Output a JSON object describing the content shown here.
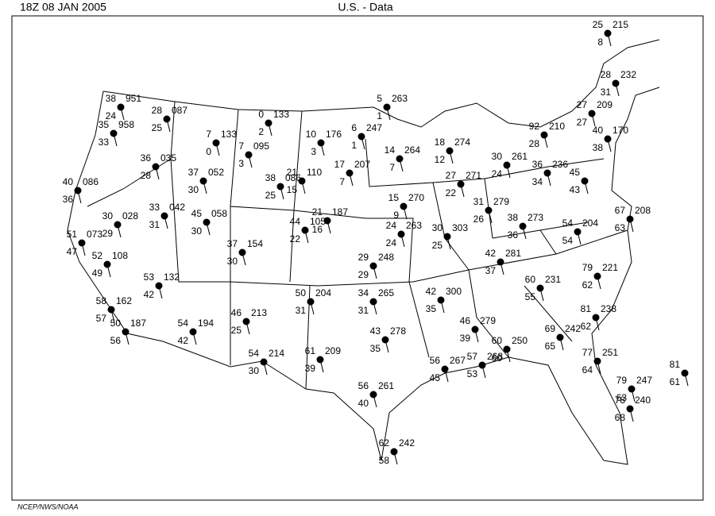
{
  "header": {
    "time": "18Z   08 JAN  2005",
    "title": "U.S. -  Data"
  },
  "footer": "NCEP/NWS/NOAA",
  "stations": [
    {
      "t": "25",
      "p": "215",
      "d": "8"
    },
    {
      "t": "28",
      "p": "232",
      "d": "31"
    },
    {
      "t": "38",
      "p": "951",
      "d": "24"
    },
    {
      "t": "35",
      "p": "958",
      "d": "33"
    },
    {
      "t": "28",
      "p": "087",
      "d": "25"
    },
    {
      "t": "7",
      "p": "133",
      "d": "0"
    },
    {
      "t": "0",
      "p": "133",
      "d": "2"
    },
    {
      "t": "7",
      "p": "095",
      "d": "3"
    },
    {
      "t": "10",
      "p": "176",
      "d": "3"
    },
    {
      "t": "6",
      "p": "247",
      "d": "1"
    },
    {
      "t": "5",
      "p": "263",
      "d": "1"
    },
    {
      "t": "14",
      "p": "264",
      "d": "7"
    },
    {
      "t": "17",
      "p": "207",
      "d": "7"
    },
    {
      "t": "21",
      "p": "110",
      "d": "15"
    },
    {
      "t": "36",
      "p": "035",
      "d": "28"
    },
    {
      "t": "37",
      "p": "052",
      "d": "30"
    },
    {
      "t": "40",
      "p": "086",
      "d": "36"
    },
    {
      "t": "33",
      "p": "042",
      "d": "31"
    },
    {
      "t": "45",
      "p": "058",
      "d": "30"
    },
    {
      "t": "30",
      "p": "028",
      "d": "29"
    },
    {
      "t": "38",
      "p": "086",
      "d": "25"
    },
    {
      "t": "21",
      "p": "187",
      "d": "16"
    },
    {
      "t": "44",
      "p": "105",
      "d": "22"
    },
    {
      "t": "37",
      "p": "154",
      "d": "30"
    },
    {
      "t": "51",
      "p": "073",
      "d": "47"
    },
    {
      "t": "52",
      "p": "108",
      "d": "49"
    },
    {
      "t": "53",
      "p": "132",
      "d": "42"
    },
    {
      "t": "58",
      "p": "162",
      "d": "57"
    },
    {
      "t": "50",
      "p": "187",
      "d": "56"
    },
    {
      "t": "46",
      "p": "213",
      "d": "25"
    },
    {
      "t": "54",
      "p": "194",
      "d": "42"
    },
    {
      "t": "54",
      "p": "214",
      "d": "30"
    },
    {
      "t": "61",
      "p": "209",
      "d": "39"
    },
    {
      "t": "50",
      "p": "204",
      "d": "31"
    },
    {
      "t": "56",
      "p": "261",
      "d": "40"
    },
    {
      "t": "62",
      "p": "242",
      "d": "58"
    },
    {
      "t": "15",
      "p": "270",
      "d": "9"
    },
    {
      "t": "24",
      "p": "263",
      "d": "24"
    },
    {
      "t": "29",
      "p": "248",
      "d": "29"
    },
    {
      "t": "34",
      "p": "265",
      "d": "31"
    },
    {
      "t": "43",
      "p": "278",
      "d": "35"
    },
    {
      "t": "56",
      "p": "267",
      "d": "45"
    },
    {
      "t": "30",
      "p": "303",
      "d": "25"
    },
    {
      "t": "42",
      "p": "300",
      "d": "35"
    },
    {
      "t": "18",
      "p": "274",
      "d": "12"
    },
    {
      "t": "27",
      "p": "271",
      "d": "22"
    },
    {
      "t": "31",
      "p": "279",
      "d": "26"
    },
    {
      "t": "30",
      "p": "261",
      "d": "24"
    },
    {
      "t": "38",
      "p": "273",
      "d": "36"
    },
    {
      "t": "42",
      "p": "281",
      "d": "37"
    },
    {
      "t": "46",
      "p": "279",
      "d": "39"
    },
    {
      "t": "57",
      "p": "268",
      "d": "53"
    },
    {
      "t": "60",
      "p": "250",
      "d": "60"
    },
    {
      "t": "60",
      "p": "231",
      "d": "55"
    },
    {
      "t": "69",
      "p": "242",
      "d": "65"
    },
    {
      "t": "36",
      "p": "236",
      "d": "34"
    },
    {
      "t": "45",
      "d": "43"
    },
    {
      "t": "54",
      "p": "204",
      "d": "54"
    },
    {
      "t": "79",
      "p": "221",
      "d": "62"
    },
    {
      "t": "81",
      "p": "238",
      "d": "62"
    },
    {
      "t": "77",
      "p": "251",
      "d": "64"
    },
    {
      "t": "67",
      "p": "208",
      "d": "63"
    },
    {
      "t": "78",
      "p": "240",
      "d": "68"
    },
    {
      "t": "79",
      "p": "247",
      "d": "63"
    },
    {
      "t": "81",
      "d": "61"
    },
    {
      "t": "92",
      "p": "210",
      "d": "28"
    },
    {
      "t": "27",
      "p": "209",
      "d": "27"
    },
    {
      "t": "40",
      "p": "170",
      "d": "38"
    }
  ]
}
